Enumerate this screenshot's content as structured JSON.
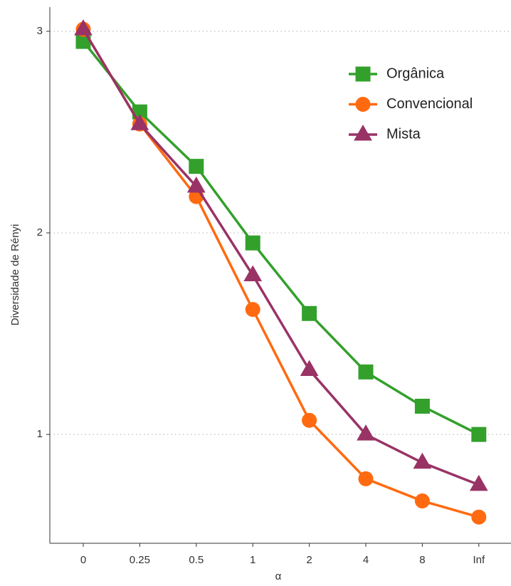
{
  "chart_data": {
    "type": "line",
    "x_label": "α",
    "y_label": "Diversidade de Rényi",
    "categories": [
      "0",
      "0.25",
      "0.5",
      "1",
      "2",
      "4",
      "8",
      "Inf"
    ],
    "series": [
      {
        "name": "Orgânica",
        "color": "#33a02c",
        "marker": "square",
        "values": [
          2.95,
          2.6,
          2.33,
          1.95,
          1.6,
          1.31,
          1.14,
          1.0
        ]
      },
      {
        "name": "Convencional",
        "color": "#ff6a10",
        "marker": "circle",
        "values": [
          3.01,
          2.54,
          2.18,
          1.62,
          1.07,
          0.78,
          0.67,
          0.59
        ]
      },
      {
        "name": "Mista",
        "color": "#993366",
        "marker": "triangle",
        "values": [
          3.01,
          2.54,
          2.23,
          1.79,
          1.32,
          1.0,
          0.86,
          0.75
        ]
      }
    ],
    "ylim": [
      0.46,
      3.12
    ],
    "yticks": [
      1,
      2,
      3
    ],
    "grid": true,
    "legend": "top-right"
  }
}
